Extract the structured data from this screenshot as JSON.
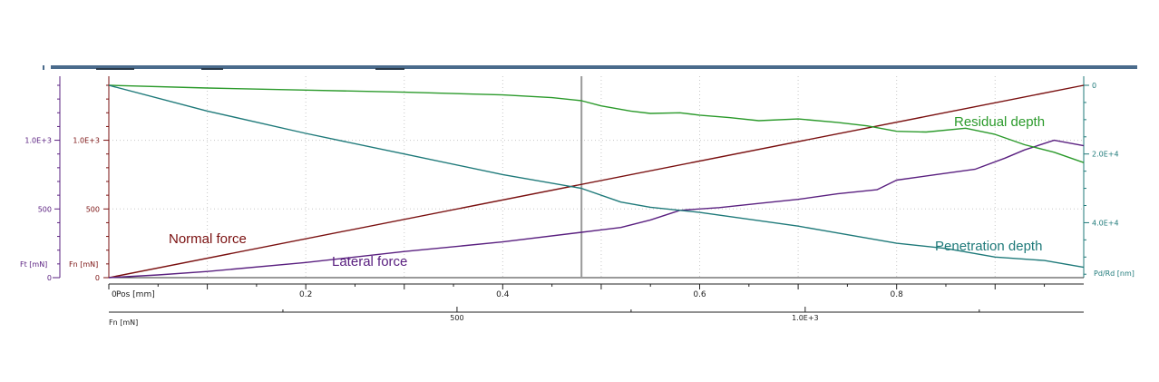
{
  "chart_data": {
    "type": "line",
    "x_axis_primary": {
      "label": "Pos [mm]",
      "range": [
        0,
        0.99
      ],
      "ticks": [
        0,
        0.2,
        0.4,
        0.6,
        0.8
      ],
      "tick_labels": [
        "0",
        "0.2",
        "0.4",
        "0.6",
        "0.8"
      ]
    },
    "x_axis_secondary": {
      "label": "Fn [mN]",
      "range": [
        0,
        1400
      ],
      "ticks": [
        500,
        1000
      ],
      "tick_labels": [
        "500",
        "1.0E+3"
      ]
    },
    "y_axis_ft": {
      "label": "Ft [mN]",
      "range": [
        0,
        1400
      ],
      "ticks": [
        0,
        500,
        1000
      ],
      "tick_labels": [
        "0",
        "500",
        "1.0E+3"
      ]
    },
    "y_axis_fn": {
      "label": "Fn [mN]",
      "range": [
        0,
        1400
      ],
      "ticks": [
        0,
        500,
        1000
      ],
      "tick_labels": [
        "0",
        "500",
        "1.0E+3"
      ]
    },
    "y_axis_depth": {
      "label": "Pd/Rd [nm]",
      "range": [
        0,
        56000
      ],
      "inverted": true,
      "ticks": [
        0,
        20000,
        40000
      ],
      "tick_labels": [
        "0",
        "2.0E+4",
        "4.0E+4"
      ]
    },
    "marker_x": 0.48,
    "grid": true,
    "series": [
      {
        "name": "Normal force",
        "axis": "fn",
        "color": "#7a1010",
        "points": [
          [
            0,
            0
          ],
          [
            0.99,
            1400
          ]
        ]
      },
      {
        "name": "Lateral force",
        "axis": "ft",
        "color": "#5a2080",
        "points": [
          [
            0,
            0
          ],
          [
            0.05,
            20
          ],
          [
            0.1,
            45
          ],
          [
            0.2,
            110
          ],
          [
            0.3,
            190
          ],
          [
            0.4,
            260
          ],
          [
            0.48,
            330
          ],
          [
            0.52,
            365
          ],
          [
            0.55,
            420
          ],
          [
            0.58,
            490
          ],
          [
            0.62,
            510
          ],
          [
            0.66,
            540
          ],
          [
            0.7,
            570
          ],
          [
            0.74,
            610
          ],
          [
            0.78,
            640
          ],
          [
            0.8,
            710
          ],
          [
            0.84,
            750
          ],
          [
            0.88,
            790
          ],
          [
            0.91,
            870
          ],
          [
            0.93,
            930
          ],
          [
            0.96,
            1000
          ],
          [
            0.99,
            960
          ]
        ]
      },
      {
        "name": "Residual depth",
        "axis": "depth",
        "color": "#2b9a2b",
        "points": [
          [
            0,
            0
          ],
          [
            0.1,
            800
          ],
          [
            0.2,
            1400
          ],
          [
            0.3,
            2000
          ],
          [
            0.4,
            2800
          ],
          [
            0.45,
            3600
          ],
          [
            0.48,
            4500
          ],
          [
            0.5,
            6000
          ],
          [
            0.53,
            7500
          ],
          [
            0.55,
            8200
          ],
          [
            0.58,
            8000
          ],
          [
            0.6,
            8700
          ],
          [
            0.63,
            9400
          ],
          [
            0.66,
            10300
          ],
          [
            0.7,
            9800
          ],
          [
            0.74,
            10800
          ],
          [
            0.77,
            11800
          ],
          [
            0.8,
            13400
          ],
          [
            0.83,
            13600
          ],
          [
            0.87,
            12500
          ],
          [
            0.9,
            14300
          ],
          [
            0.93,
            17300
          ],
          [
            0.96,
            19500
          ],
          [
            0.99,
            22500
          ]
        ]
      },
      {
        "name": "Penetration depth",
        "axis": "depth",
        "color": "#1f7a7a",
        "points": [
          [
            0,
            0
          ],
          [
            0.1,
            7500
          ],
          [
            0.2,
            14000
          ],
          [
            0.3,
            20000
          ],
          [
            0.4,
            26000
          ],
          [
            0.48,
            30000
          ],
          [
            0.52,
            34000
          ],
          [
            0.55,
            35500
          ],
          [
            0.6,
            37000
          ],
          [
            0.7,
            41000
          ],
          [
            0.8,
            46000
          ],
          [
            0.85,
            47500
          ],
          [
            0.9,
            50000
          ],
          [
            0.95,
            51000
          ],
          [
            0.99,
            53000
          ]
        ]
      }
    ]
  }
}
